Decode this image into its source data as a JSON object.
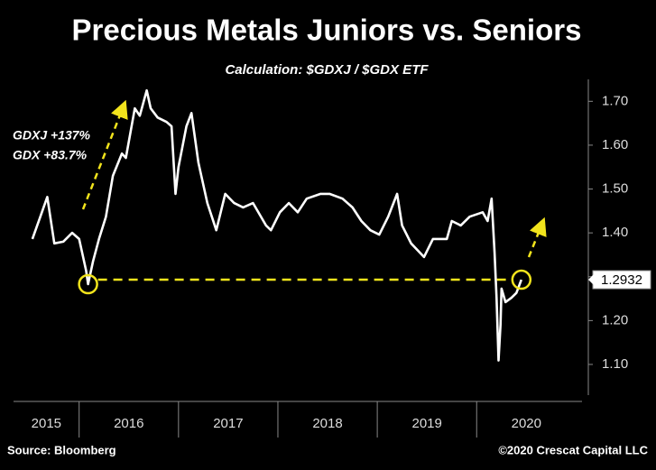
{
  "chart_data": {
    "type": "line",
    "title": "Precious Metals Juniors vs. Seniors",
    "subtitle": "Calculation: $GDXJ / $GDX ETF",
    "annotations": [
      "GDXJ +137%",
      "GDX +83.7%"
    ],
    "source": "Source: Bloomberg",
    "credit": "©2020 Crescat Capital LLC",
    "color": "#ffffff",
    "highlight_color": "#f2e41c",
    "grid": false,
    "x": [
      2015.53,
      2015.61,
      2015.68,
      2015.75,
      2015.84,
      2015.93,
      2016.0,
      2016.07,
      2016.09,
      2016.14,
      2016.2,
      2016.27,
      2016.34,
      2016.43,
      2016.47,
      2016.56,
      2016.61,
      2016.68,
      2016.72,
      2016.79,
      2016.88,
      2016.93,
      2016.97,
      2017.0,
      2017.08,
      2017.13,
      2017.2,
      2017.29,
      2017.38,
      2017.47,
      2017.56,
      2017.65,
      2017.75,
      2017.88,
      2017.93,
      2018.02,
      2018.11,
      2018.2,
      2018.29,
      2018.43,
      2018.52,
      2018.65,
      2018.75,
      2018.84,
      2018.93,
      2019.02,
      2019.11,
      2019.2,
      2019.25,
      2019.34,
      2019.47,
      2019.56,
      2019.7,
      2019.75,
      2019.84,
      2019.93,
      2020.06,
      2020.11,
      2020.15,
      2020.18,
      2020.2,
      2020.22,
      2020.24,
      2020.25,
      2020.29,
      2020.35,
      2020.4,
      2020.45
    ],
    "values": [
      1.386,
      1.437,
      1.482,
      1.376,
      1.38,
      1.4,
      1.386,
      1.314,
      1.283,
      1.335,
      1.386,
      1.437,
      1.53,
      1.581,
      1.571,
      1.684,
      1.667,
      1.725,
      1.684,
      1.663,
      1.653,
      1.643,
      1.489,
      1.55,
      1.643,
      1.673,
      1.56,
      1.468,
      1.406,
      1.489,
      1.468,
      1.458,
      1.468,
      1.417,
      1.406,
      1.447,
      1.468,
      1.447,
      1.478,
      1.489,
      1.489,
      1.478,
      1.458,
      1.427,
      1.406,
      1.396,
      1.437,
      1.489,
      1.417,
      1.376,
      1.345,
      1.386,
      1.386,
      1.427,
      1.417,
      1.437,
      1.447,
      1.427,
      1.478,
      1.355,
      1.252,
      1.109,
      1.191,
      1.273,
      1.242,
      1.252,
      1.263,
      1.2932
    ],
    "xlim": [
      2015.34,
      2021.06
    ],
    "xticks": [
      2015,
      2016,
      2017,
      2018,
      2019,
      2020
    ],
    "ylim": [
      1.03,
      1.75
    ],
    "yticks": [
      {
        "value": 1.1,
        "label": "1.10"
      },
      {
        "value": 1.2,
        "label": "1.20"
      },
      {
        "value": 1.3,
        "label": "1.30"
      },
      {
        "value": 1.4,
        "label": "1.40"
      },
      {
        "value": 1.5,
        "label": "1.50"
      },
      {
        "value": 1.6,
        "label": "1.60"
      },
      {
        "value": 1.7,
        "label": "1.70"
      }
    ]
  }
}
